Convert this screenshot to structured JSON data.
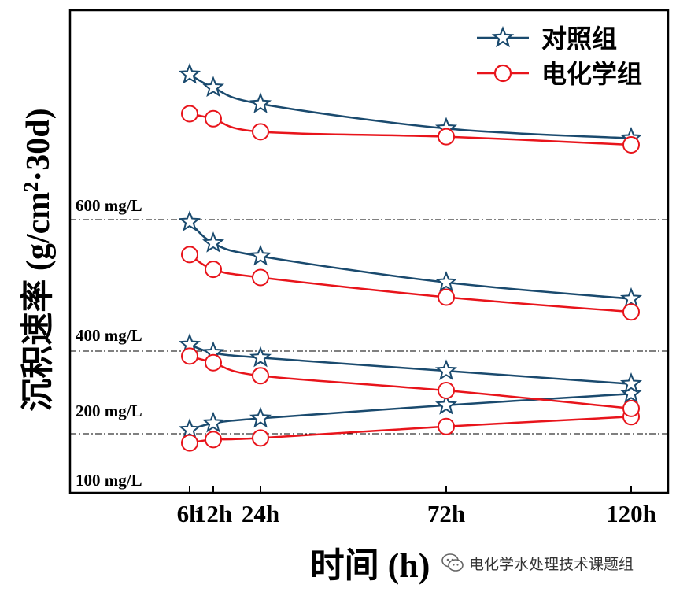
{
  "chart_data": {
    "type": "line",
    "xlabel": "时间 (h)",
    "ylabel_main": "沉积速率 (g/cm",
    "ylabel_sup": "2",
    "ylabel_tail": "·30d)",
    "x": [
      6,
      12,
      24,
      72,
      120
    ],
    "x_tick_labels": [
      "6h",
      "12h",
      "24h",
      "72h",
      "120h"
    ],
    "legend": [
      {
        "name": "对照组",
        "marker": "star",
        "color": "#1a4a6e"
      },
      {
        "name": "电化学组",
        "marker": "circle",
        "color": "#e8141b"
      }
    ],
    "panels": [
      {
        "label": "100 mg/L",
        "control": [
          0.38,
          0.42,
          0.45,
          0.53,
          0.6
        ],
        "electro": [
          0.3,
          0.32,
          0.33,
          0.4,
          0.46
        ]
      },
      {
        "label": "200 mg/L",
        "control": [
          0.9,
          0.85,
          0.82,
          0.74,
          0.66
        ],
        "electro": [
          0.83,
          0.79,
          0.71,
          0.62,
          0.51
        ]
      },
      {
        "label": "400 mg/L",
        "control": [
          1.65,
          1.52,
          1.44,
          1.28,
          1.18
        ],
        "electro": [
          1.45,
          1.36,
          1.31,
          1.19,
          1.1
        ]
      },
      {
        "label": "600 mg/L",
        "control": [
          2.55,
          2.47,
          2.37,
          2.22,
          2.16
        ],
        "electro": [
          2.31,
          2.28,
          2.2,
          2.17,
          2.12
        ]
      }
    ],
    "separator_style": "dash-dot"
  },
  "colors": {
    "control": "#1a4a6e",
    "electro": "#e8141b",
    "axis": "#000000"
  },
  "watermark": {
    "text": "电化学水处理技术课题组",
    "icon": "wechat-icon"
  }
}
